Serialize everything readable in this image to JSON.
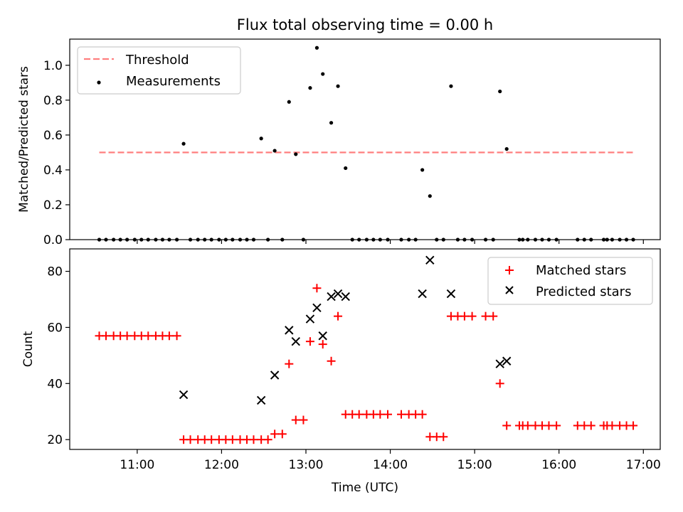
{
  "title": "Flux total observing time = 0.00 h",
  "chart_data": [
    {
      "type": "scatter",
      "ylabel": "Matched/Predicted stars",
      "ylim": [
        0,
        1.15
      ],
      "yticks": [
        "0.0",
        "0.2",
        "0.4",
        "0.6",
        "0.8",
        "1.0"
      ],
      "xticks": [
        "11:00",
        "12:00",
        "13:00",
        "14:00",
        "15:00",
        "16:00",
        "17:00"
      ],
      "xlim_hours": [
        10.2,
        17.2
      ],
      "grid": false,
      "legend": "top-left",
      "threshold": {
        "name": "Threshold",
        "value": 0.5,
        "x_start": 10.55,
        "x_end": 16.9,
        "color": "#ff7f7f"
      },
      "series": [
        {
          "name": "Measurements",
          "color": "#000000",
          "points": [
            [
              10.55,
              0
            ],
            [
              10.63,
              0
            ],
            [
              10.72,
              0
            ],
            [
              10.8,
              0
            ],
            [
              10.88,
              0
            ],
            [
              10.97,
              0
            ],
            [
              11.05,
              0
            ],
            [
              11.13,
              0
            ],
            [
              11.22,
              0
            ],
            [
              11.3,
              0
            ],
            [
              11.38,
              0
            ],
            [
              11.47,
              0
            ],
            [
              11.55,
              0.55
            ],
            [
              11.63,
              0
            ],
            [
              11.72,
              0
            ],
            [
              11.8,
              0
            ],
            [
              11.88,
              0
            ],
            [
              11.97,
              0
            ],
            [
              12.05,
              0
            ],
            [
              12.13,
              0
            ],
            [
              12.22,
              0
            ],
            [
              12.3,
              0
            ],
            [
              12.38,
              0
            ],
            [
              12.47,
              0.58
            ],
            [
              12.55,
              0
            ],
            [
              12.63,
              0.51
            ],
            [
              12.72,
              0
            ],
            [
              12.8,
              0.79
            ],
            [
              12.88,
              0.49
            ],
            [
              12.97,
              0
            ],
            [
              13.05,
              0.87
            ],
            [
              13.13,
              1.1
            ],
            [
              13.2,
              0.95
            ],
            [
              13.3,
              0.67
            ],
            [
              13.38,
              0.88
            ],
            [
              13.47,
              0.41
            ],
            [
              13.55,
              0
            ],
            [
              13.63,
              0
            ],
            [
              13.72,
              0
            ],
            [
              13.8,
              0
            ],
            [
              13.88,
              0
            ],
            [
              13.97,
              0
            ],
            [
              14.13,
              0
            ],
            [
              14.22,
              0
            ],
            [
              14.3,
              0
            ],
            [
              14.38,
              0.4
            ],
            [
              14.47,
              0.25
            ],
            [
              14.55,
              0
            ],
            [
              14.63,
              0
            ],
            [
              14.72,
              0.88
            ],
            [
              14.8,
              0
            ],
            [
              14.88,
              0
            ],
            [
              14.97,
              0
            ],
            [
              15.13,
              0
            ],
            [
              15.22,
              0
            ],
            [
              15.3,
              0.85
            ],
            [
              15.38,
              0.52
            ],
            [
              15.53,
              0
            ],
            [
              15.57,
              0
            ],
            [
              15.63,
              0
            ],
            [
              15.72,
              0
            ],
            [
              15.8,
              0
            ],
            [
              15.88,
              0
            ],
            [
              15.97,
              0
            ],
            [
              16.22,
              0
            ],
            [
              16.3,
              0
            ],
            [
              16.38,
              0
            ],
            [
              16.53,
              0
            ],
            [
              16.57,
              0
            ],
            [
              16.63,
              0
            ],
            [
              16.72,
              0
            ],
            [
              16.8,
              0
            ],
            [
              16.88,
              0
            ]
          ]
        }
      ]
    },
    {
      "type": "scatter",
      "xlabel": "Time (UTC)",
      "ylabel": "Count",
      "ylim": [
        16.5,
        88
      ],
      "yticks": [
        "20",
        "40",
        "60",
        "80"
      ],
      "xticks": [
        "11:00",
        "12:00",
        "13:00",
        "14:00",
        "15:00",
        "16:00",
        "17:00"
      ],
      "xlim_hours": [
        10.2,
        17.2
      ],
      "grid": false,
      "legend": "top-right",
      "series": [
        {
          "name": "Matched stars",
          "color": "#ff0000",
          "marker": "plus",
          "points": [
            [
              10.55,
              57
            ],
            [
              10.63,
              57
            ],
            [
              10.72,
              57
            ],
            [
              10.8,
              57
            ],
            [
              10.88,
              57
            ],
            [
              10.97,
              57
            ],
            [
              11.05,
              57
            ],
            [
              11.13,
              57
            ],
            [
              11.22,
              57
            ],
            [
              11.3,
              57
            ],
            [
              11.38,
              57
            ],
            [
              11.47,
              57
            ],
            [
              11.55,
              20
            ],
            [
              11.63,
              20
            ],
            [
              11.72,
              20
            ],
            [
              11.8,
              20
            ],
            [
              11.88,
              20
            ],
            [
              11.97,
              20
            ],
            [
              12.05,
              20
            ],
            [
              12.13,
              20
            ],
            [
              12.22,
              20
            ],
            [
              12.3,
              20
            ],
            [
              12.38,
              20
            ],
            [
              12.47,
              20
            ],
            [
              12.55,
              20
            ],
            [
              12.63,
              22
            ],
            [
              12.72,
              22
            ],
            [
              12.8,
              47
            ],
            [
              12.88,
              27
            ],
            [
              12.97,
              27
            ],
            [
              13.05,
              55
            ],
            [
              13.13,
              74
            ],
            [
              13.2,
              54
            ],
            [
              13.3,
              48
            ],
            [
              13.38,
              64
            ],
            [
              13.47,
              29
            ],
            [
              13.55,
              29
            ],
            [
              13.63,
              29
            ],
            [
              13.72,
              29
            ],
            [
              13.8,
              29
            ],
            [
              13.88,
              29
            ],
            [
              13.97,
              29
            ],
            [
              14.13,
              29
            ],
            [
              14.22,
              29
            ],
            [
              14.3,
              29
            ],
            [
              14.38,
              29
            ],
            [
              14.47,
              21
            ],
            [
              14.55,
              21
            ],
            [
              14.63,
              21
            ],
            [
              14.72,
              64
            ],
            [
              14.8,
              64
            ],
            [
              14.88,
              64
            ],
            [
              14.97,
              64
            ],
            [
              15.13,
              64
            ],
            [
              15.22,
              64
            ],
            [
              15.3,
              40
            ],
            [
              15.38,
              25
            ],
            [
              15.53,
              25
            ],
            [
              15.57,
              25
            ],
            [
              15.63,
              25
            ],
            [
              15.72,
              25
            ],
            [
              15.8,
              25
            ],
            [
              15.88,
              25
            ],
            [
              15.97,
              25
            ],
            [
              16.22,
              25
            ],
            [
              16.3,
              25
            ],
            [
              16.38,
              25
            ],
            [
              16.53,
              25
            ],
            [
              16.57,
              25
            ],
            [
              16.63,
              25
            ],
            [
              16.72,
              25
            ],
            [
              16.8,
              25
            ],
            [
              16.88,
              25
            ]
          ]
        },
        {
          "name": "Predicted stars",
          "color": "#000000",
          "marker": "x",
          "points": [
            [
              11.55,
              36
            ],
            [
              12.47,
              34
            ],
            [
              12.63,
              43
            ],
            [
              12.8,
              59
            ],
            [
              12.88,
              55
            ],
            [
              13.05,
              63
            ],
            [
              13.13,
              67
            ],
            [
              13.2,
              57
            ],
            [
              13.3,
              71
            ],
            [
              13.38,
              72
            ],
            [
              13.47,
              71
            ],
            [
              14.38,
              72
            ],
            [
              14.47,
              84
            ],
            [
              14.72,
              72
            ],
            [
              15.3,
              47
            ],
            [
              15.38,
              48
            ]
          ]
        }
      ]
    }
  ]
}
